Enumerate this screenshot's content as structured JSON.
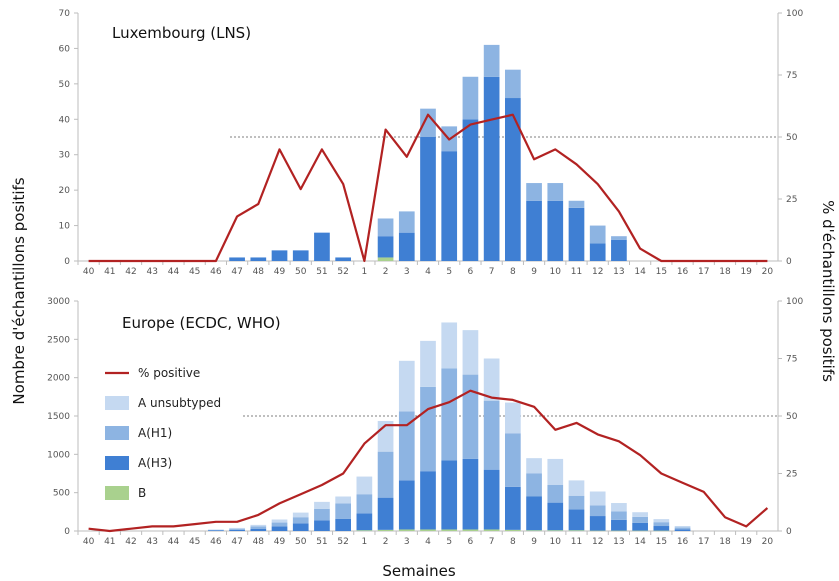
{
  "chart_data": [
    {
      "type": "bar",
      "title": "Luxembourg (LNS)",
      "weeks": [
        "40",
        "41",
        "42",
        "43",
        "44",
        "45",
        "46",
        "47",
        "48",
        "49",
        "50",
        "51",
        "52",
        "1",
        "2",
        "3",
        "4",
        "5",
        "6",
        "7",
        "8",
        "9",
        "10",
        "11",
        "12",
        "13",
        "14",
        "15",
        "16",
        "17",
        "18",
        "19",
        "20"
      ],
      "ylim": [
        0,
        70
      ],
      "y_ticks": [
        "0",
        "10",
        "20",
        "30",
        "40",
        "50",
        "60",
        "70"
      ],
      "y2lim": [
        0,
        100
      ],
      "y2_ticks": [
        "0",
        "25",
        "50",
        "75",
        "100"
      ],
      "reference_line_pct": 50,
      "series": [
        {
          "name": "B",
          "color": "#a9d18e",
          "values": [
            0,
            0,
            0,
            0,
            0,
            0,
            0,
            0,
            0,
            0,
            0,
            0,
            0,
            0,
            1,
            0,
            0,
            0,
            0,
            0,
            0,
            0,
            0,
            0,
            0,
            0,
            0,
            0,
            0,
            0,
            0,
            0,
            0
          ]
        },
        {
          "name": "A(H3)",
          "color": "#3f7fd3",
          "values": [
            0,
            0,
            0,
            0,
            0,
            0,
            0,
            1,
            1,
            3,
            3,
            8,
            1,
            0,
            6,
            8,
            35,
            31,
            40,
            52,
            46,
            17,
            17,
            15,
            5,
            6,
            0,
            0,
            0,
            0,
            0,
            0,
            0
          ]
        },
        {
          "name": "A(H1)",
          "color": "#8db4e2",
          "values": [
            0,
            0,
            0,
            0,
            0,
            0,
            0,
            0,
            0,
            0,
            0,
            0,
            0,
            0,
            5,
            6,
            8,
            7,
            12,
            9,
            8,
            5,
            5,
            2,
            5,
            1,
            0,
            0,
            0,
            0,
            0,
            0,
            0
          ]
        },
        {
          "name": "A unsubtyped",
          "color": "#c5d9f1",
          "values": [
            0,
            0,
            0,
            0,
            0,
            0,
            0,
            0,
            0,
            0,
            0,
            0,
            0,
            0,
            0,
            0,
            0,
            0,
            0,
            0,
            0,
            0,
            0,
            0,
            0,
            0,
            0,
            0,
            0,
            0,
            0,
            0,
            0
          ]
        }
      ],
      "pct_positive": [
        0,
        0,
        0,
        0,
        0,
        0,
        0,
        18,
        23,
        45,
        29,
        45,
        31,
        0,
        53,
        42,
        59,
        49,
        55,
        57,
        59,
        41,
        45,
        39,
        31,
        20,
        5,
        0,
        0,
        0,
        0,
        0,
        0
      ]
    },
    {
      "type": "bar",
      "title": "Europe (ECDC, WHO)",
      "weeks": [
        "40",
        "41",
        "42",
        "43",
        "44",
        "45",
        "46",
        "47",
        "48",
        "49",
        "50",
        "51",
        "52",
        "1",
        "2",
        "3",
        "4",
        "5",
        "6",
        "7",
        "8",
        "9",
        "10",
        "11",
        "12",
        "13",
        "14",
        "15",
        "16",
        "17",
        "18",
        "19",
        "20"
      ],
      "ylim": [
        0,
        3000
      ],
      "y_ticks": [
        "0",
        "500",
        "1000",
        "1500",
        "2000",
        "2500",
        "3000"
      ],
      "y2lim": [
        0,
        100
      ],
      "y2_ticks": [
        "0",
        "25",
        "50",
        "75",
        "100"
      ],
      "reference_line_pct": 50,
      "series": [
        {
          "name": "B",
          "color": "#a9d18e",
          "values": [
            0,
            0,
            0,
            0,
            0,
            0,
            0,
            0,
            0,
            0,
            0,
            0,
            0,
            10,
            15,
            20,
            20,
            20,
            20,
            20,
            15,
            10,
            10,
            10,
            5,
            5,
            5,
            5,
            0,
            0,
            0,
            0,
            0
          ]
        },
        {
          "name": "A(H3)",
          "color": "#3f7fd3",
          "values": [
            0,
            0,
            0,
            0,
            0,
            0,
            10,
            15,
            30,
            60,
            100,
            140,
            160,
            220,
            420,
            640,
            760,
            900,
            920,
            780,
            560,
            440,
            360,
            270,
            190,
            140,
            100,
            60,
            20,
            0,
            0,
            0,
            0
          ]
        },
        {
          "name": "A(H1)",
          "color": "#8db4e2",
          "values": [
            0,
            0,
            0,
            0,
            0,
            0,
            5,
            15,
            30,
            50,
            80,
            150,
            200,
            250,
            600,
            900,
            1100,
            1200,
            1100,
            900,
            700,
            300,
            230,
            180,
            140,
            110,
            80,
            50,
            25,
            0,
            0,
            0,
            0
          ]
        },
        {
          "name": "A unsubtyped",
          "color": "#c5d9f1",
          "values": [
            0,
            0,
            0,
            0,
            0,
            0,
            5,
            10,
            20,
            40,
            60,
            90,
            90,
            230,
            400,
            660,
            600,
            600,
            580,
            550,
            400,
            200,
            340,
            200,
            180,
            110,
            60,
            40,
            20,
            0,
            0,
            0,
            0
          ]
        }
      ],
      "pct_positive": [
        1,
        0,
        1,
        2,
        2,
        3,
        4,
        4,
        7,
        12,
        16,
        20,
        25,
        38,
        46,
        46,
        53,
        56,
        61,
        58,
        57,
        54,
        44,
        47,
        42,
        39,
        33,
        25,
        21,
        17,
        6,
        2,
        10
      ]
    }
  ],
  "legend": {
    "line_label": "% positive",
    "line_color": "#b22222",
    "items": [
      {
        "label": "A unsubtyped",
        "color": "#c5d9f1"
      },
      {
        "label": "A(H1)",
        "color": "#8db4e2"
      },
      {
        "label": "A(H3)",
        "color": "#3f7fd3"
      },
      {
        "label": "B",
        "color": "#a9d18e"
      }
    ]
  },
  "axes": {
    "xlabel": "Semaines",
    "ylabel": "Nombre d'échantillons positifs",
    "y2label": "% d'échantillons positifs"
  }
}
